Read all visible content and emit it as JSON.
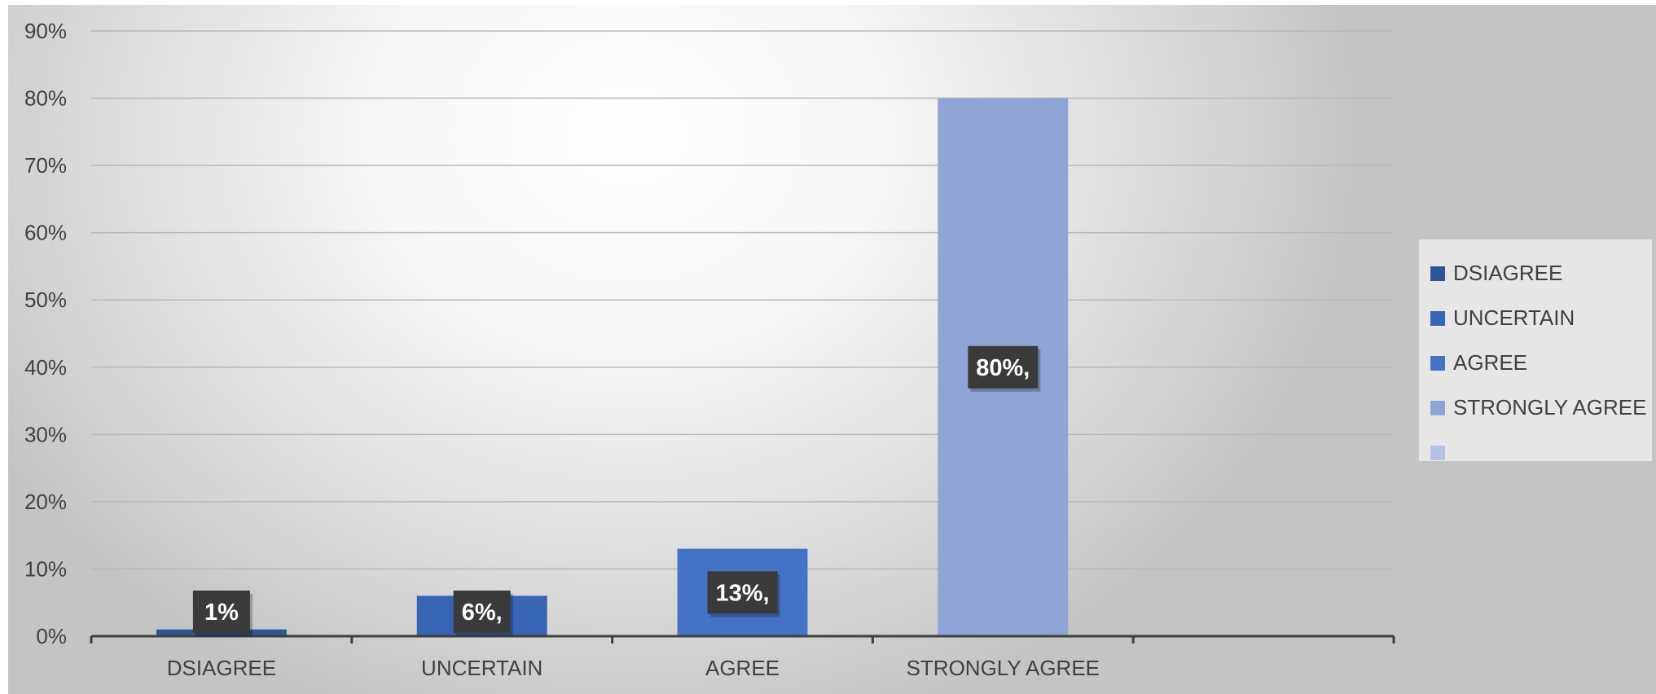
{
  "chart_data": {
    "type": "bar",
    "categories": [
      "DSIAGREE",
      "UNCERTAIN",
      "AGREE",
      "STRONGLY AGREE",
      ""
    ],
    "values": [
      1,
      6,
      13,
      80,
      null
    ],
    "data_labels": [
      "1%",
      "6%,",
      "13%,",
      "80%,",
      ""
    ],
    "y_ticks": [
      "0%",
      "10%",
      "20%",
      "30%",
      "40%",
      "50%",
      "60%",
      "70%",
      "80%",
      "90%"
    ],
    "ylim": [
      0,
      90
    ],
    "grid": true,
    "legend": {
      "placement": "right",
      "entries": [
        "DSIAGREE",
        "UNCERTAIN",
        "AGREE",
        "STRONGLY AGREE",
        ""
      ]
    },
    "colors": [
      "#2f5597",
      "#3864b4",
      "#4472c4",
      "#8fa5d6",
      "#b4c2e6"
    ]
  }
}
